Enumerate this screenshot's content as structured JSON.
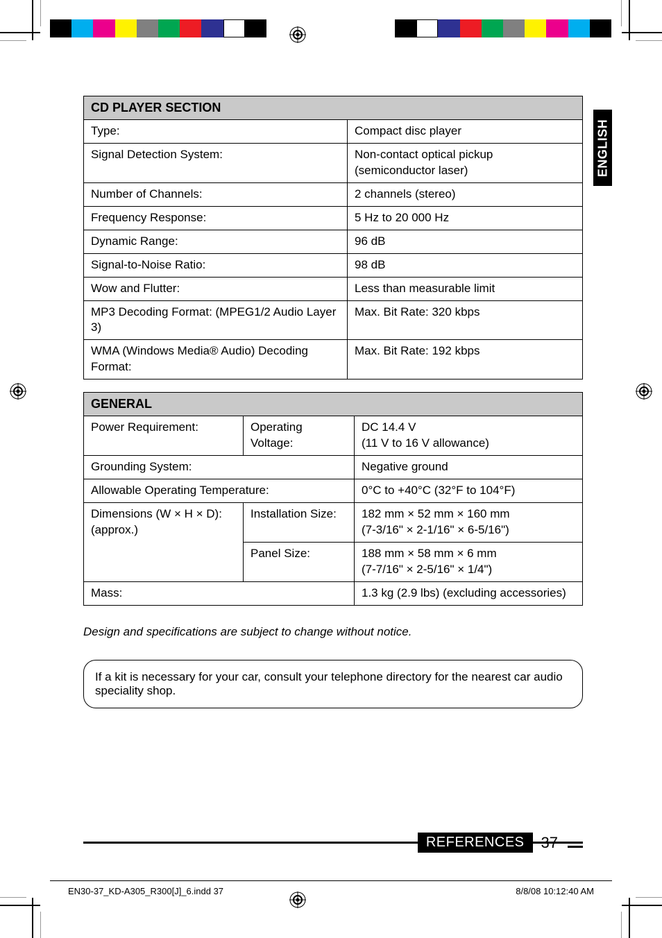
{
  "colorbars": {
    "left": [
      "#000000",
      "#00aeef",
      "#ec008c",
      "#fff200",
      "#808080",
      "#00a651",
      "#ed1c24",
      "#2e3192",
      "#ffffff",
      "#000000"
    ],
    "right": [
      "#000000",
      "#ffffff",
      "#2e3192",
      "#ed1c24",
      "#00a651",
      "#808080",
      "#fff200",
      "#ec008c",
      "#00aeef",
      "#000000"
    ]
  },
  "side_tab": "ENGLISH",
  "cd_section": {
    "header": "CD PLAYER SECTION",
    "rows": [
      {
        "label": "Type:",
        "value": "Compact disc player"
      },
      {
        "label": "Signal Detection System:",
        "value": "Non-contact optical pickup (semiconductor laser)"
      },
      {
        "label": "Number of Channels:",
        "value": "2 channels (stereo)"
      },
      {
        "label": "Frequency Response:",
        "value": "5 Hz to 20 000 Hz"
      },
      {
        "label": "Dynamic Range:",
        "value": "96 dB"
      },
      {
        "label": "Signal-to-Noise Ratio:",
        "value": "98 dB"
      },
      {
        "label": "Wow and Flutter:",
        "value": "Less than measurable limit"
      },
      {
        "label": "MP3 Decoding Format: (MPEG1/2 Audio Layer 3)",
        "value": "Max. Bit Rate: 320 kbps"
      },
      {
        "label": "WMA (Windows Media® Audio) Decoding Format:",
        "value": "Max. Bit Rate: 192 kbps"
      }
    ]
  },
  "general_section": {
    "header": "GENERAL",
    "power_label": "Power Requirement:",
    "power_sub": "Operating Voltage:",
    "power_val": "DC 14.4 V\n(11 V to 16 V allowance)",
    "ground_label": "Grounding System:",
    "ground_val": "Negative ground",
    "temp_label": "Allowable Operating Temperature:",
    "temp_val": "0°C to +40°C (32°F to 104°F)",
    "dim_label": "Dimensions (W × H × D): (approx.)",
    "inst_label": "Installation Size:",
    "inst_val": "182 mm × 52 mm × 160 mm\n(7-3/16\" × 2-1/16\" × 6-5/16\")",
    "panel_label": "Panel Size:",
    "panel_val": "188 mm × 58 mm × 6 mm\n(7-7/16\" × 2-5/16\" × 1/4\")",
    "mass_label": "Mass:",
    "mass_val": "1.3 kg (2.9 lbs) (excluding accessories)"
  },
  "note": "Design and specifications are subject to change without notice.",
  "callout": "If a kit is necessary for your car, consult your telephone directory for the nearest car audio speciality shop.",
  "footer": {
    "label": "REFERENCES",
    "page": "37"
  },
  "slug": {
    "left": "EN30-37_KD-A305_R300[J]_6.indd   37",
    "right": "8/8/08   10:12:40 AM"
  }
}
